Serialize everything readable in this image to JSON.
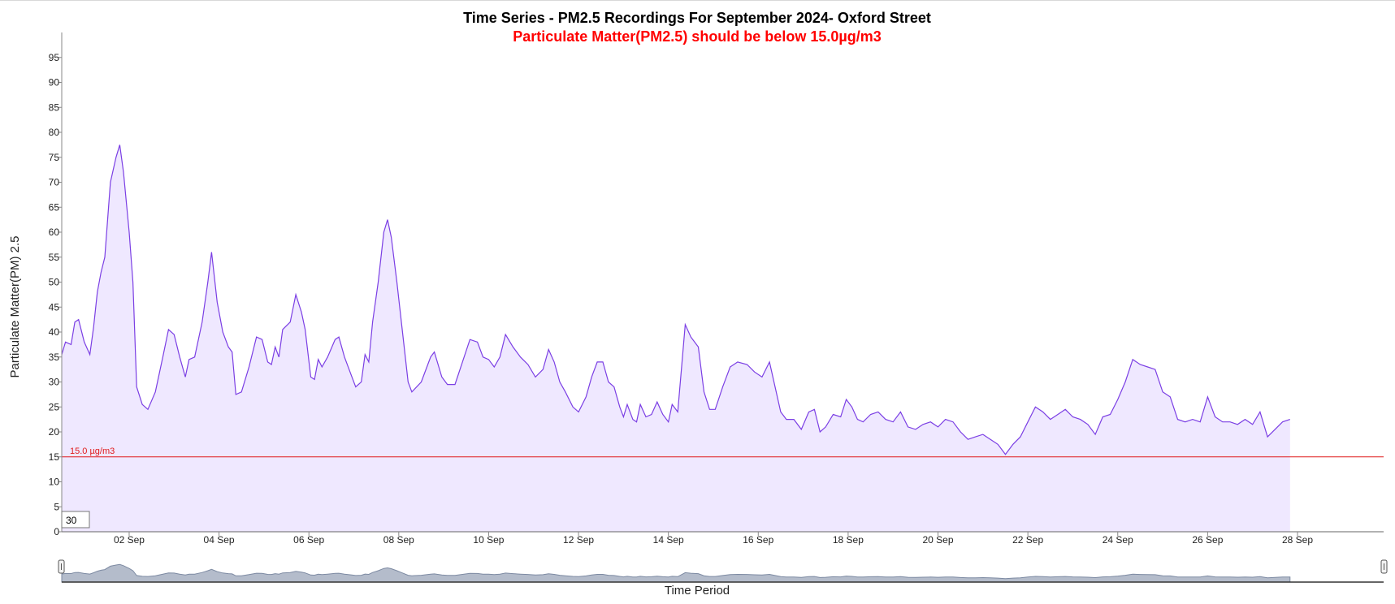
{
  "chart_data": {
    "type": "area",
    "title": "Time Series - PM2.5 Recordings For September 2024- Oxford Street",
    "subtitle": "Particulate Matter(PM2.5) should be below 15.0µg/m3",
    "xlabel": "Time Period",
    "ylabel": "Particulate Matter(PM) 2.5",
    "ylim": [
      0,
      100
    ],
    "yticks": [
      0,
      5,
      10,
      15,
      20,
      25,
      30,
      35,
      40,
      45,
      50,
      55,
      60,
      65,
      70,
      75,
      80,
      85,
      90,
      95
    ],
    "xlim": [
      "2024-09-01",
      "2024-09-30"
    ],
    "xticks": [
      {
        "date": "2024-09-02",
        "label": "02 Sep"
      },
      {
        "date": "2024-09-04",
        "label": "04 Sep"
      },
      {
        "date": "2024-09-06",
        "label": "06 Sep"
      },
      {
        "date": "2024-09-08",
        "label": "08 Sep"
      },
      {
        "date": "2024-09-10",
        "label": "10 Sep"
      },
      {
        "date": "2024-09-12",
        "label": "12 Sep"
      },
      {
        "date": "2024-09-14",
        "label": "14 Sep"
      },
      {
        "date": "2024-09-16",
        "label": "16 Sep"
      },
      {
        "date": "2024-09-18",
        "label": "18 Sep"
      },
      {
        "date": "2024-09-20",
        "label": "20 Sep"
      },
      {
        "date": "2024-09-22",
        "label": "22 Sep"
      },
      {
        "date": "2024-09-24",
        "label": "24 Sep"
      },
      {
        "date": "2024-09-26",
        "label": "26 Sep"
      },
      {
        "date": "2024-09-28",
        "label": "28 Sep"
      }
    ],
    "threshold": {
      "value": 15.0,
      "label": "15.0 µg/m3",
      "color": "#e01b1b"
    },
    "line_color": "#7b3fe4",
    "fill_color": "#efe8ff",
    "grid": false,
    "rolling_window_value": "30",
    "series": [
      {
        "points": [
          [
            "2024-09-01 00:00",
            35.5
          ],
          [
            "2024-09-01 02:00",
            38
          ],
          [
            "2024-09-01 05:00",
            37.5
          ],
          [
            "2024-09-01 07:00",
            42
          ],
          [
            "2024-09-01 09:00",
            42.5
          ],
          [
            "2024-09-01 12:00",
            38
          ],
          [
            "2024-09-01 15:00",
            35.5
          ],
          [
            "2024-09-01 17:00",
            41
          ],
          [
            "2024-09-01 19:00",
            48
          ],
          [
            "2024-09-01 21:00",
            52
          ],
          [
            "2024-09-01 23:00",
            55
          ],
          [
            "2024-09-02 02:00",
            70
          ],
          [
            "2024-09-02 05:00",
            75
          ],
          [
            "2024-09-02 07:00",
            77.5
          ],
          [
            "2024-09-02 09:00",
            72
          ],
          [
            "2024-09-02 12:00",
            60
          ],
          [
            "2024-09-02 14:00",
            50
          ],
          [
            "2024-09-02 16:00",
            29
          ],
          [
            "2024-09-02 19:00",
            25.5
          ],
          [
            "2024-09-02 22:00",
            24.5
          ],
          [
            "2024-09-03 02:00",
            28
          ],
          [
            "2024-09-03 06:00",
            35
          ],
          [
            "2024-09-03 09:00",
            40.5
          ],
          [
            "2024-09-03 12:00",
            39.5
          ],
          [
            "2024-09-03 15:00",
            35
          ],
          [
            "2024-09-03 18:00",
            31
          ],
          [
            "2024-09-03 20:00",
            34.5
          ],
          [
            "2024-09-03 23:00",
            35
          ],
          [
            "2024-09-04 03:00",
            42
          ],
          [
            "2024-09-04 06:00",
            50
          ],
          [
            "2024-09-04 08:00",
            56
          ],
          [
            "2024-09-04 11:00",
            46
          ],
          [
            "2024-09-04 14:00",
            40
          ],
          [
            "2024-09-04 17:00",
            37
          ],
          [
            "2024-09-04 19:00",
            36
          ],
          [
            "2024-09-04 21:00",
            27.5
          ],
          [
            "2024-09-05 00:00",
            28
          ],
          [
            "2024-09-05 04:00",
            33
          ],
          [
            "2024-09-05 08:00",
            39
          ],
          [
            "2024-09-05 11:00",
            38.5
          ],
          [
            "2024-09-05 14:00",
            34
          ],
          [
            "2024-09-05 16:00",
            33.5
          ],
          [
            "2024-09-05 18:00",
            37
          ],
          [
            "2024-09-05 20:00",
            35
          ],
          [
            "2024-09-05 22:00",
            40.5
          ],
          [
            "2024-09-06 02:00",
            42
          ],
          [
            "2024-09-06 05:00",
            47.5
          ],
          [
            "2024-09-06 08:00",
            44
          ],
          [
            "2024-09-06 10:00",
            40.5
          ],
          [
            "2024-09-06 13:00",
            31
          ],
          [
            "2024-09-06 15:00",
            30.5
          ],
          [
            "2024-09-06 17:00",
            34.5
          ],
          [
            "2024-09-06 19:00",
            33
          ],
          [
            "2024-09-06 22:00",
            35
          ],
          [
            "2024-09-07 02:00",
            38.5
          ],
          [
            "2024-09-07 04:00",
            39
          ],
          [
            "2024-09-07 07:00",
            35
          ],
          [
            "2024-09-07 11:00",
            31
          ],
          [
            "2024-09-07 13:00",
            29
          ],
          [
            "2024-09-07 16:00",
            30
          ],
          [
            "2024-09-07 18:00",
            35.5
          ],
          [
            "2024-09-07 20:00",
            34
          ],
          [
            "2024-09-07 22:00",
            42
          ],
          [
            "2024-09-08 01:00",
            50
          ],
          [
            "2024-09-08 04:00",
            60
          ],
          [
            "2024-09-08 06:00",
            62.5
          ],
          [
            "2024-09-08 08:00",
            59
          ],
          [
            "2024-09-08 11:00",
            50
          ],
          [
            "2024-09-08 14:00",
            40
          ],
          [
            "2024-09-08 17:00",
            30
          ],
          [
            "2024-09-08 19:00",
            28
          ],
          [
            "2024-09-09 00:00",
            30
          ],
          [
            "2024-09-09 05:00",
            35
          ],
          [
            "2024-09-09 07:00",
            36
          ],
          [
            "2024-09-09 11:00",
            31
          ],
          [
            "2024-09-09 14:00",
            29.5
          ],
          [
            "2024-09-09 18:00",
            29.5
          ],
          [
            "2024-09-09 22:00",
            34
          ],
          [
            "2024-09-10 02:00",
            38.5
          ],
          [
            "2024-09-10 06:00",
            38
          ],
          [
            "2024-09-10 09:00",
            35
          ],
          [
            "2024-09-10 12:00",
            34.5
          ],
          [
            "2024-09-10 15:00",
            33
          ],
          [
            "2024-09-10 18:00",
            35
          ],
          [
            "2024-09-10 21:00",
            39.5
          ],
          [
            "2024-09-11 01:00",
            37
          ],
          [
            "2024-09-11 05:00",
            35
          ],
          [
            "2024-09-11 09:00",
            33.5
          ],
          [
            "2024-09-11 13:00",
            31
          ],
          [
            "2024-09-11 17:00",
            32.5
          ],
          [
            "2024-09-11 20:00",
            36.5
          ],
          [
            "2024-09-11 23:00",
            34
          ],
          [
            "2024-09-12 02:00",
            30
          ],
          [
            "2024-09-12 05:00",
            28
          ],
          [
            "2024-09-12 09:00",
            25
          ],
          [
            "2024-09-12 12:00",
            24
          ],
          [
            "2024-09-12 16:00",
            27
          ],
          [
            "2024-09-12 19:00",
            31
          ],
          [
            "2024-09-12 22:00",
            34
          ],
          [
            "2024-09-13 01:00",
            34
          ],
          [
            "2024-09-13 04:00",
            30
          ],
          [
            "2024-09-13 07:00",
            29
          ],
          [
            "2024-09-13 10:00",
            25
          ],
          [
            "2024-09-13 12:00",
            23
          ],
          [
            "2024-09-13 14:00",
            25.5
          ],
          [
            "2024-09-13 17:00",
            22.5
          ],
          [
            "2024-09-13 19:00",
            22
          ],
          [
            "2024-09-13 21:00",
            25.5
          ],
          [
            "2024-09-14 00:00",
            23
          ],
          [
            "2024-09-14 03:00",
            23.5
          ],
          [
            "2024-09-14 06:00",
            26
          ],
          [
            "2024-09-14 09:00",
            23.5
          ],
          [
            "2024-09-14 12:00",
            22
          ],
          [
            "2024-09-14 14:00",
            25.5
          ],
          [
            "2024-09-14 17:00",
            24
          ],
          [
            "2024-09-14 21:00",
            41.5
          ],
          [
            "2024-09-15 00:00",
            39
          ],
          [
            "2024-09-15 04:00",
            37
          ],
          [
            "2024-09-15 07:00",
            28
          ],
          [
            "2024-09-15 10:00",
            24.5
          ],
          [
            "2024-09-15 13:00",
            24.5
          ],
          [
            "2024-09-15 17:00",
            29
          ],
          [
            "2024-09-15 21:00",
            33
          ],
          [
            "2024-09-16 01:00",
            34
          ],
          [
            "2024-09-16 06:00",
            33.5
          ],
          [
            "2024-09-16 10:00",
            32
          ],
          [
            "2024-09-16 14:00",
            31
          ],
          [
            "2024-09-16 18:00",
            34
          ],
          [
            "2024-09-16 21:00",
            29
          ],
          [
            "2024-09-17 00:00",
            24
          ],
          [
            "2024-09-17 03:00",
            22.5
          ],
          [
            "2024-09-17 07:00",
            22.5
          ],
          [
            "2024-09-17 11:00",
            20.5
          ],
          [
            "2024-09-17 15:00",
            24
          ],
          [
            "2024-09-17 18:00",
            24.5
          ],
          [
            "2024-09-17 21:00",
            20
          ],
          [
            "2024-09-18 00:00",
            21
          ],
          [
            "2024-09-18 04:00",
            23.5
          ],
          [
            "2024-09-18 08:00",
            23
          ],
          [
            "2024-09-18 11:00",
            26.5
          ],
          [
            "2024-09-18 14:00",
            25
          ],
          [
            "2024-09-18 17:00",
            22.5
          ],
          [
            "2024-09-18 20:00",
            22
          ],
          [
            "2024-09-19 00:00",
            23.5
          ],
          [
            "2024-09-19 04:00",
            24
          ],
          [
            "2024-09-19 08:00",
            22.5
          ],
          [
            "2024-09-19 12:00",
            22
          ],
          [
            "2024-09-19 16:00",
            24
          ],
          [
            "2024-09-19 20:00",
            21
          ],
          [
            "2024-09-20 00:00",
            20.5
          ],
          [
            "2024-09-20 04:00",
            21.5
          ],
          [
            "2024-09-20 08:00",
            22
          ],
          [
            "2024-09-20 12:00",
            21
          ],
          [
            "2024-09-20 16:00",
            22.5
          ],
          [
            "2024-09-20 20:00",
            22
          ],
          [
            "2024-09-21 00:00",
            20
          ],
          [
            "2024-09-21 04:00",
            18.5
          ],
          [
            "2024-09-21 08:00",
            19
          ],
          [
            "2024-09-21 12:00",
            19.5
          ],
          [
            "2024-09-21 16:00",
            18.5
          ],
          [
            "2024-09-21 20:00",
            17.5
          ],
          [
            "2024-09-22 00:00",
            15.5
          ],
          [
            "2024-09-22 04:00",
            17.5
          ],
          [
            "2024-09-22 08:00",
            19
          ],
          [
            "2024-09-22 12:00",
            22
          ],
          [
            "2024-09-22 16:00",
            25
          ],
          [
            "2024-09-22 20:00",
            24
          ],
          [
            "2024-09-23 00:00",
            22.5
          ],
          [
            "2024-09-23 04:00",
            23.5
          ],
          [
            "2024-09-23 08:00",
            24.5
          ],
          [
            "2024-09-23 12:00",
            23
          ],
          [
            "2024-09-23 16:00",
            22.5
          ],
          [
            "2024-09-23 20:00",
            21.5
          ],
          [
            "2024-09-24 00:00",
            19.5
          ],
          [
            "2024-09-24 04:00",
            23
          ],
          [
            "2024-09-24 08:00",
            23.5
          ],
          [
            "2024-09-24 12:00",
            26.5
          ],
          [
            "2024-09-24 16:00",
            30
          ],
          [
            "2024-09-24 20:00",
            34.5
          ],
          [
            "2024-09-25 00:00",
            33.5
          ],
          [
            "2024-09-25 04:00",
            33
          ],
          [
            "2024-09-25 08:00",
            32.5
          ],
          [
            "2024-09-25 12:00",
            28
          ],
          [
            "2024-09-25 16:00",
            27
          ],
          [
            "2024-09-25 20:00",
            22.5
          ],
          [
            "2024-09-26 00:00",
            22
          ],
          [
            "2024-09-26 04:00",
            22.5
          ],
          [
            "2024-09-26 08:00",
            22
          ],
          [
            "2024-09-26 12:00",
            27
          ],
          [
            "2024-09-26 16:00",
            23
          ],
          [
            "2024-09-26 20:00",
            22
          ],
          [
            "2024-09-27 00:00",
            22
          ],
          [
            "2024-09-27 04:00",
            21.5
          ],
          [
            "2024-09-27 08:00",
            22.5
          ],
          [
            "2024-09-27 12:00",
            21.5
          ],
          [
            "2024-09-27 16:00",
            24
          ],
          [
            "2024-09-27 20:00",
            19
          ],
          [
            "2024-09-28 00:00",
            20.5
          ],
          [
            "2024-09-28 04:00",
            22
          ],
          [
            "2024-09-28 08:00",
            22.5
          ]
        ]
      }
    ]
  }
}
